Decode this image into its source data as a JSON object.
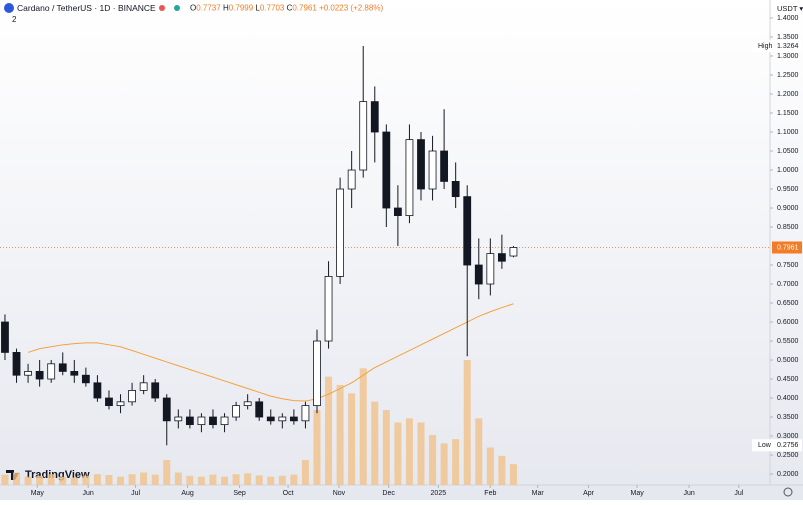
{
  "header": {
    "symbol": "Cardano / TetherUS · 1D · BINANCE",
    "o": "O",
    "h": "H",
    "l": "L",
    "c": "C",
    "change": "+0.0223 (+2.88%)",
    "indicator_count": "2",
    "currency": "USDT ▾",
    "logo": "TradingView",
    "high_label": "High",
    "low_label": "Low"
  },
  "chart_data": {
    "type": "candlestick",
    "open": [
      0.6,
      0.52,
      0.46,
      0.47,
      0.45,
      0.49,
      0.47,
      0.46,
      0.44,
      0.4,
      0.38,
      0.39,
      0.42,
      0.44,
      0.4,
      0.34,
      0.35,
      0.33,
      0.35,
      0.33,
      0.35,
      0.38,
      0.39,
      0.35,
      0.34,
      0.35,
      0.34,
      0.38,
      0.55,
      0.72,
      0.95,
      1.0,
      1.18,
      1.1,
      0.9,
      0.88,
      1.08,
      0.95,
      1.05,
      0.97,
      0.93,
      0.75,
      0.7,
      0.78,
      0.7737
    ],
    "high": [
      0.62,
      0.53,
      0.49,
      0.5,
      0.5,
      0.52,
      0.5,
      0.48,
      0.46,
      0.42,
      0.41,
      0.44,
      0.46,
      0.45,
      0.41,
      0.37,
      0.37,
      0.36,
      0.37,
      0.36,
      0.39,
      0.41,
      0.4,
      0.37,
      0.36,
      0.37,
      0.39,
      0.58,
      0.76,
      0.98,
      1.05,
      1.3264,
      1.22,
      1.12,
      0.96,
      1.12,
      1.1,
      1.09,
      1.16,
      1.02,
      0.96,
      0.82,
      0.82,
      0.83,
      0.7999
    ],
    "low": [
      0.5,
      0.44,
      0.44,
      0.43,
      0.44,
      0.46,
      0.44,
      0.43,
      0.39,
      0.37,
      0.36,
      0.38,
      0.41,
      0.39,
      0.2756,
      0.32,
      0.32,
      0.31,
      0.32,
      0.31,
      0.34,
      0.37,
      0.34,
      0.33,
      0.32,
      0.33,
      0.32,
      0.36,
      0.53,
      0.7,
      0.9,
      0.98,
      1.02,
      0.85,
      0.8,
      0.86,
      0.92,
      0.92,
      0.95,
      0.9,
      0.51,
      0.66,
      0.67,
      0.74,
      0.7703
    ],
    "close": [
      0.52,
      0.46,
      0.47,
      0.45,
      0.49,
      0.47,
      0.46,
      0.44,
      0.4,
      0.38,
      0.39,
      0.42,
      0.44,
      0.4,
      0.34,
      0.35,
      0.33,
      0.35,
      0.33,
      0.35,
      0.38,
      0.39,
      0.35,
      0.34,
      0.35,
      0.34,
      0.38,
      0.55,
      0.72,
      0.95,
      1.0,
      1.18,
      1.1,
      0.9,
      0.88,
      1.08,
      0.95,
      1.05,
      0.97,
      0.93,
      0.75,
      0.7,
      0.78,
      0.76,
      0.7961
    ],
    "volume": [
      250,
      300,
      200,
      220,
      260,
      200,
      180,
      220,
      260,
      240,
      200,
      260,
      300,
      250,
      600,
      300,
      220,
      200,
      250,
      200,
      260,
      280,
      230,
      200,
      220,
      250,
      600,
      1800,
      2600,
      2400,
      2200,
      2800,
      2000,
      1800,
      1500,
      1600,
      1500,
      1200,
      1000,
      1100,
      3000,
      1600,
      900,
      700,
      500
    ],
    "ma": [
      null,
      null,
      0.52,
      0.53,
      0.535,
      0.54,
      0.543,
      0.545,
      0.545,
      0.54,
      0.535,
      0.525,
      0.515,
      0.505,
      0.495,
      0.485,
      0.475,
      0.465,
      0.455,
      0.445,
      0.435,
      0.425,
      0.415,
      0.405,
      0.398,
      0.393,
      0.392,
      0.398,
      0.41,
      0.425,
      0.44,
      0.46,
      0.48,
      0.495,
      0.51,
      0.525,
      0.54,
      0.555,
      0.57,
      0.585,
      0.6,
      0.615,
      0.627,
      0.638,
      0.648
    ],
    "xticks": [
      {
        "value": 2.8,
        "label": "May"
      },
      {
        "value": 7.2,
        "label": "Jun"
      },
      {
        "value": 11.3,
        "label": "Jul"
      },
      {
        "value": 15.8,
        "label": "Aug"
      },
      {
        "value": 20.3,
        "label": "Sep"
      },
      {
        "value": 24.5,
        "label": "Oct"
      },
      {
        "value": 28.9,
        "label": "Nov"
      },
      {
        "value": 33.2,
        "label": "Dec"
      },
      {
        "value": 37.5,
        "label": "2025"
      },
      {
        "value": 42.0,
        "label": "Feb"
      },
      {
        "value": 46.1,
        "label": "Mar"
      },
      {
        "value": 50.5,
        "label": "Apr"
      },
      {
        "value": 54.7,
        "label": "May"
      },
      {
        "value": 59.2,
        "label": "Jun"
      },
      {
        "value": 63.5,
        "label": "Jul"
      }
    ],
    "xlim": [
      -0.43,
      66.2
    ],
    "ylim": [
      0.1711,
      1.4474
    ],
    "yticks": [
      {
        "value": 0.2,
        "label": "0.2000"
      },
      {
        "value": 0.25,
        "label": "0.2500"
      },
      {
        "value": 0.3,
        "label": "0.3000"
      },
      {
        "value": 0.35,
        "label": "0.3500"
      },
      {
        "value": 0.4,
        "label": "0.4000"
      },
      {
        "value": 0.45,
        "label": "0.4500"
      },
      {
        "value": 0.5,
        "label": "0.5000"
      },
      {
        "value": 0.55,
        "label": "0.5500"
      },
      {
        "value": 0.6,
        "label": "0.6000"
      },
      {
        "value": 0.65,
        "label": "0.6500"
      },
      {
        "value": 0.7,
        "label": "0.7000"
      },
      {
        "value": 0.75,
        "label": "0.7500"
      },
      {
        "value": 0.85,
        "label": "0.8500"
      },
      {
        "value": 0.9,
        "label": "0.9000"
      },
      {
        "value": 0.95,
        "label": "0.9500"
      },
      {
        "value": 1.0,
        "label": "1.0000"
      },
      {
        "value": 1.05,
        "label": "1.0500"
      },
      {
        "value": 1.1,
        "label": "1.1000"
      },
      {
        "value": 1.15,
        "label": "1.1500"
      },
      {
        "value": 1.2,
        "label": "1.2000"
      },
      {
        "value": 1.25,
        "label": "1.2500"
      },
      {
        "value": 1.3,
        "label": "1.3000"
      },
      {
        "value": 1.35,
        "label": "1.3500"
      },
      {
        "value": 1.4,
        "label": "1.4000"
      }
    ],
    "up_color": "#ffffff",
    "down_color": "#131722",
    "volume_color": "#f0c28a",
    "ma_color": "#f4a23c",
    "price_color": "#f57c26"
  }
}
